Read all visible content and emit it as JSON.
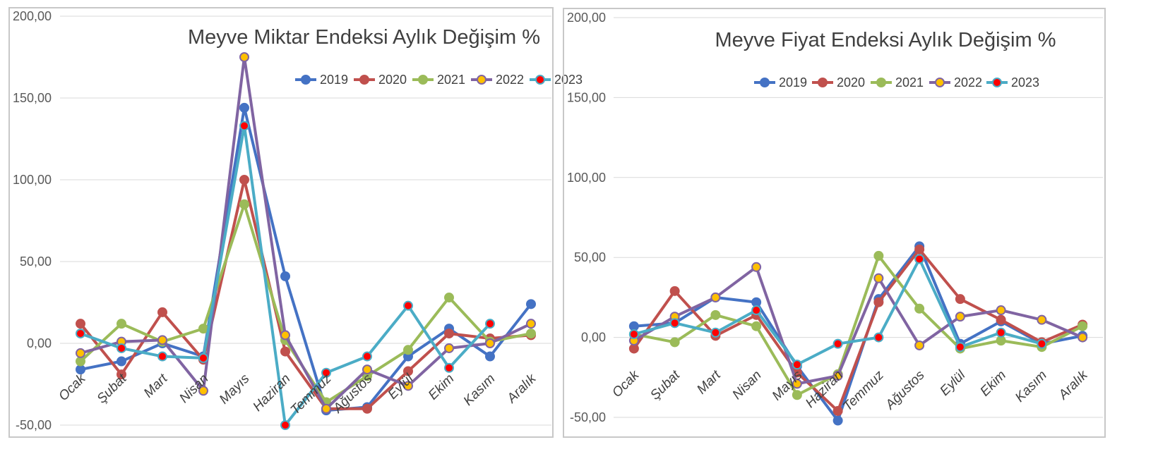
{
  "chart_data": [
    {
      "type": "line",
      "title": "Meyve Miktar Endeksi Aylık Değişim %",
      "xlabel": "",
      "ylabel": "",
      "ylim": [
        -50,
        200
      ],
      "y_ticks": [
        "-50,00",
        "0,00",
        "50,00",
        "100,00",
        "150,00",
        "200,00"
      ],
      "categories": [
        "Ocak",
        "Şubat",
        "Mart",
        "Nisan",
        "Mayıs",
        "Haziran",
        "Temmuz",
        "Ağustos",
        "Eylül",
        "Ekim",
        "Kasım",
        "Aralık"
      ],
      "legend_position": "top-right",
      "grid": true,
      "series": [
        {
          "name": "2019",
          "color": "#4472c4",
          "marker_fill": "#4472c4",
          "values": [
            -16,
            -11,
            0,
            -8,
            144,
            41,
            -41,
            -39,
            -8,
            9,
            -8,
            24
          ]
        },
        {
          "name": "2020",
          "color": "#c0504d",
          "marker_fill": "#c0504d",
          "values": [
            12,
            -19,
            19,
            -10,
            100,
            -5,
            -40,
            -40,
            -17,
            6,
            3,
            5
          ]
        },
        {
          "name": "2021",
          "color": "#9bbb59",
          "marker_fill": "#9bbb59",
          "values": [
            -11,
            12,
            1,
            9,
            85,
            2,
            -36,
            -20,
            -4,
            28,
            1,
            6
          ]
        },
        {
          "name": "2022",
          "color": "#8064a2",
          "marker_fill": "#ffc000",
          "values": [
            -6,
            1,
            2,
            -29,
            175,
            5,
            -40,
            -16,
            -26,
            -3,
            0,
            12
          ]
        },
        {
          "name": "2023",
          "color": "#4bacc6",
          "marker_fill": "#ff0000",
          "values": [
            6,
            -3,
            -8,
            -9,
            133,
            -50,
            -18,
            -8,
            23,
            -15,
            12,
            null
          ]
        }
      ]
    },
    {
      "type": "line",
      "title": "Meyve Fiyat Endeksi Aylık Değişim %",
      "xlabel": "",
      "ylabel": "",
      "ylim": [
        -50,
        200
      ],
      "y_ticks": [
        "-50,00",
        "0,00",
        "50,00",
        "100,00",
        "150,00",
        "200,00"
      ],
      "categories": [
        "Ocak",
        "Şubat",
        "Mart",
        "Nisan",
        "Mayıs",
        "Haziran",
        "Temmuz",
        "Ağustos",
        "Eylül",
        "Ekim",
        "Kasım",
        "Aralık"
      ],
      "legend_position": "top",
      "grid": true,
      "series": [
        {
          "name": "2019",
          "color": "#4472c4",
          "marker_fill": "#4472c4",
          "values": [
            7,
            9,
            25,
            22,
            -18,
            -52,
            24,
            57,
            -4,
            10,
            -4,
            1
          ]
        },
        {
          "name": "2020",
          "color": "#c0504d",
          "marker_fill": "#c0504d",
          "values": [
            -7,
            29,
            1,
            14,
            -22,
            -46,
            22,
            55,
            24,
            11,
            -3,
            8
          ]
        },
        {
          "name": "2021",
          "color": "#9bbb59",
          "marker_fill": "#9bbb59",
          "values": [
            2,
            -3,
            14,
            7,
            -36,
            -23,
            51,
            18,
            -7,
            -2,
            -6,
            7
          ]
        },
        {
          "name": "2022",
          "color": "#8064a2",
          "marker_fill": "#ffc000",
          "values": [
            -2,
            13,
            25,
            44,
            -29,
            -24,
            37,
            -5,
            13,
            17,
            11,
            0
          ]
        },
        {
          "name": "2023",
          "color": "#4bacc6",
          "marker_fill": "#ff0000",
          "values": [
            2,
            9,
            3,
            17,
            -17,
            -4,
            0,
            49,
            -6,
            3,
            -4,
            null
          ]
        }
      ]
    }
  ]
}
